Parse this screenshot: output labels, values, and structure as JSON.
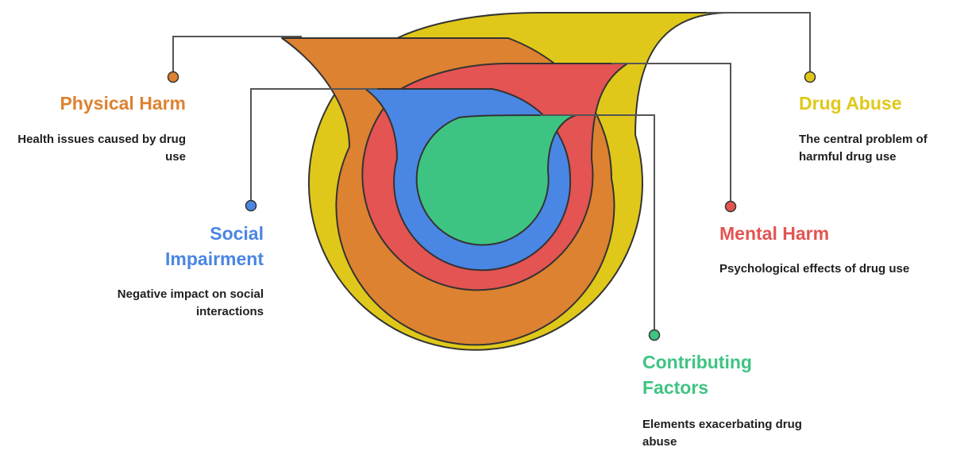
{
  "colors": {
    "drug_abuse": "#E0C81A",
    "physical_harm": "#DD8230",
    "mental_harm": "#E35452",
    "social_impairment": "#4A86E3",
    "contributing_factors": "#3EC482",
    "connector": "#555555",
    "outline": "#333333"
  },
  "layers": [
    {
      "key": "drug_abuse",
      "title": "Drug Abuse",
      "description": "The central problem of harmful drug use"
    },
    {
      "key": "physical_harm",
      "title": "Physical Harm",
      "description": "Health issues caused by drug use"
    },
    {
      "key": "mental_harm",
      "title": "Mental Harm",
      "description": "Psychological effects of drug use"
    },
    {
      "key": "social_impairment",
      "title": "Social Impairment",
      "description": "Negative impact on social interactions"
    },
    {
      "key": "contributing_factors",
      "title": "Contributing Factors",
      "description": "Elements exacerbating drug abuse"
    }
  ]
}
